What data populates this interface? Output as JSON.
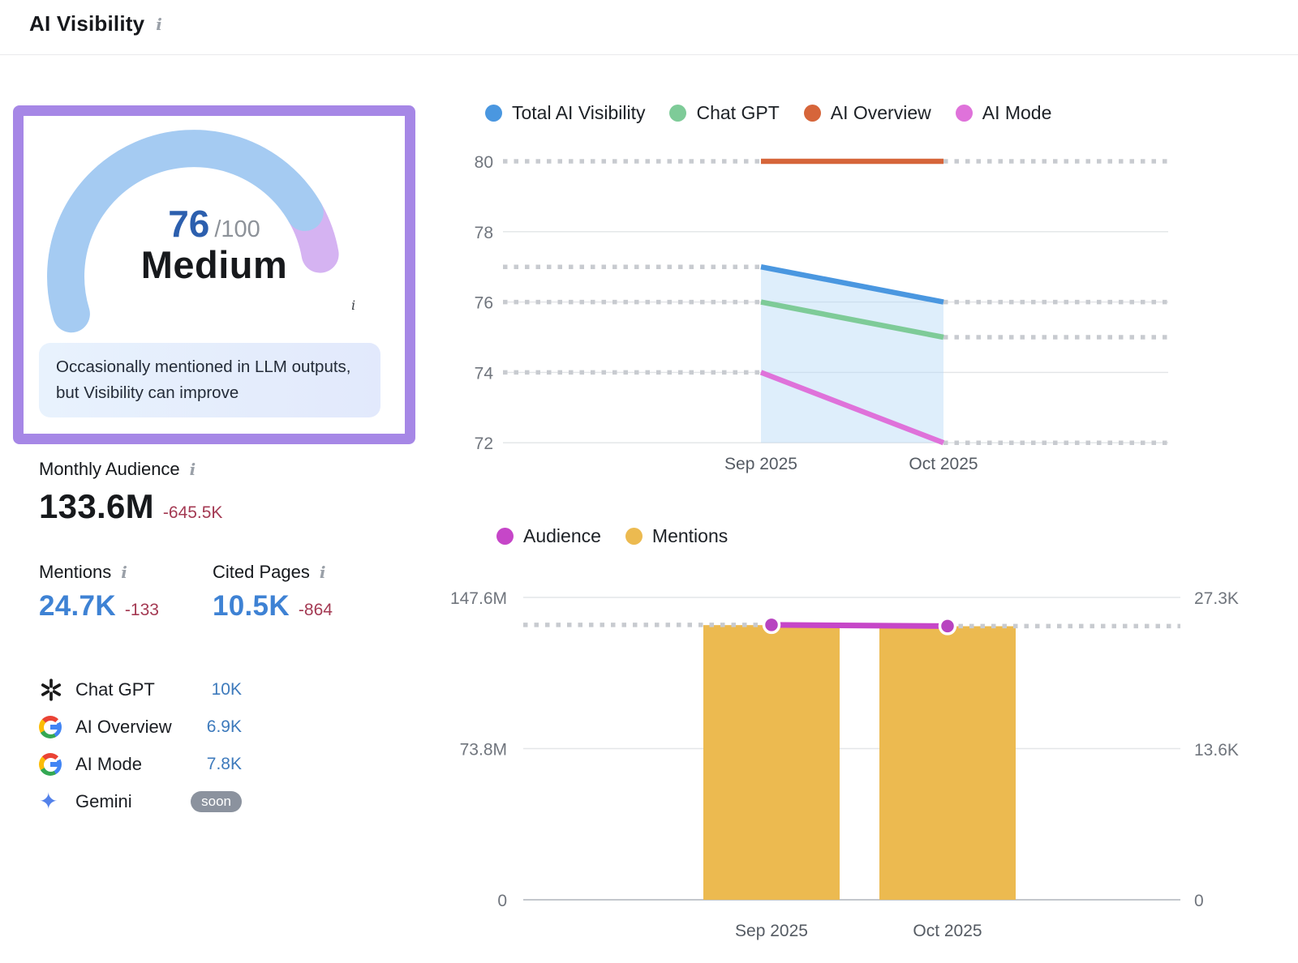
{
  "header": {
    "title": "AI Visibility"
  },
  "icons": {
    "info_glyph": "i"
  },
  "colors": {
    "accent_purple": "#a687e6",
    "gauge_blue": "#a5cbf2",
    "gauge_tip_purple": "#d5b3f2",
    "score_blue": "#2c5fae",
    "negative_red": "#a43a53",
    "link_blue": "#3e82d4",
    "platform_value_blue": "#3d7abc",
    "soon_badge_bg": "#8b929e",
    "desc_bg1": "#e8f2fd",
    "desc_bg2": "#e2e9fc"
  },
  "gauge": {
    "score": "76",
    "max_label": "/100",
    "rating": "Medium",
    "description": "Occasionally mentioned in LLM outputs, but Visibility can improve",
    "mini_icon": "i"
  },
  "metrics": {
    "monthly_audience": {
      "label": "Monthly Audience",
      "value": "133.6M",
      "delta": "-645.5K"
    },
    "mentions": {
      "label": "Mentions",
      "value": "24.7K",
      "delta": "-133"
    },
    "cited_pages": {
      "label": "Cited Pages",
      "value": "10.5K",
      "delta": "-864"
    }
  },
  "platforms": [
    {
      "name": "Chat GPT",
      "value": "10K",
      "badge": "",
      "icon": "openai-icon"
    },
    {
      "name": "AI Overview",
      "value": "6.9K",
      "badge": "",
      "icon": "google-icon"
    },
    {
      "name": "AI Mode",
      "value": "7.8K",
      "badge": "",
      "icon": "google-icon"
    },
    {
      "name": "Gemini",
      "value": "",
      "badge": "soon",
      "icon": "gemini-icon"
    }
  ],
  "chart_data": [
    {
      "type": "line",
      "title": "AI Visibility trend by platform",
      "x_labels": [
        "Sep 2025",
        "Oct 2025"
      ],
      "ylim": [
        72,
        80
      ],
      "yticks": [
        80,
        78,
        76,
        74,
        72
      ],
      "legend_position": "top",
      "grid": true,
      "series": [
        {
          "name": "Total AI Visibility",
          "color": "#4a97e0",
          "values": [
            77,
            76
          ],
          "area": true
        },
        {
          "name": "Chat GPT",
          "color": "#7ecb98",
          "values": [
            76,
            75
          ],
          "area": false
        },
        {
          "name": "AI Overview",
          "color": "#d6653a",
          "values": [
            80,
            80
          ],
          "area": false
        },
        {
          "name": "AI Mode",
          "color": "#df72da",
          "values": [
            74,
            72
          ],
          "area": false
        }
      ]
    },
    {
      "type": "bar",
      "title": "Audience and Mentions by month",
      "x_labels": [
        "Sep 2025",
        "Oct 2025"
      ],
      "legend_position": "top",
      "left_axis": {
        "labels": [
          "147.6M",
          "73.8M",
          "0"
        ],
        "values": [
          147.6,
          73.8,
          0
        ],
        "max": 147.6,
        "unit": "M"
      },
      "right_axis": {
        "labels": [
          "27.3K",
          "13.6K",
          "0"
        ],
        "values": [
          27.3,
          13.6,
          0
        ],
        "max": 27.3,
        "unit": "K"
      },
      "series": [
        {
          "name": "Audience",
          "type": "line",
          "axis": "left",
          "color": "#c646c8",
          "values": [
            134.2,
            133.6
          ]
        },
        {
          "name": "Mentions",
          "type": "bar",
          "axis": "right",
          "color": "#ecba50",
          "values": [
            24.8,
            24.7
          ]
        }
      ]
    }
  ]
}
